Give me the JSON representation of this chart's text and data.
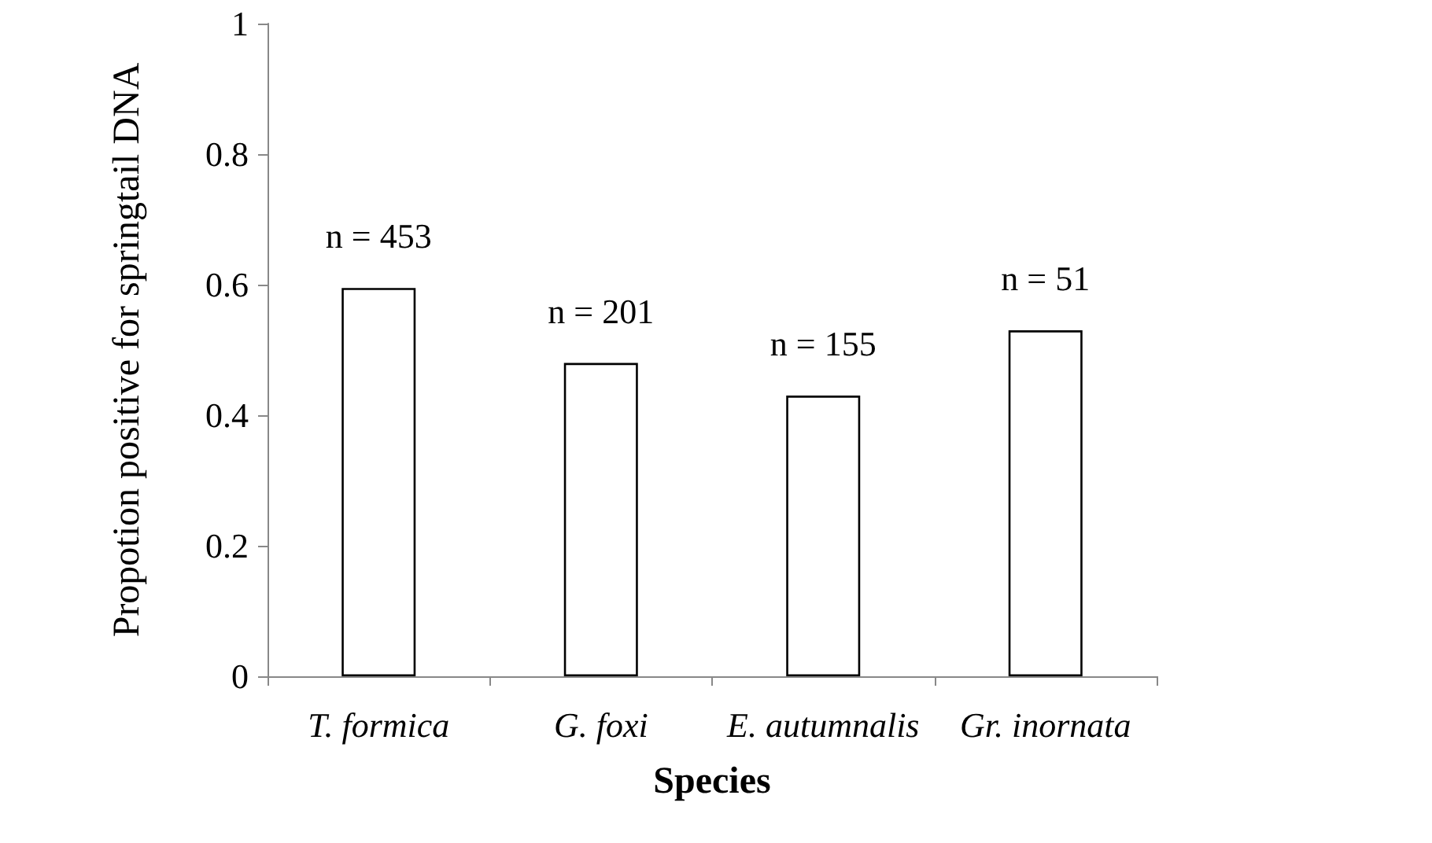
{
  "chart_data": {
    "type": "bar",
    "xlabel": "Species",
    "ylabel": "Propotion positive for springtail DNA",
    "categories": [
      "T. formica",
      "G. foxi",
      "E. autumnalis",
      "Gr. inornata"
    ],
    "values": [
      0.595,
      0.48,
      0.43,
      0.53
    ],
    "color": "#ffffff",
    "ylim": [
      0,
      1
    ],
    "yticks": [
      0,
      0.2,
      0.4,
      0.6,
      0.8,
      1
    ],
    "grid": false,
    "annotations": [
      {
        "text": "n = 453",
        "x": "T. formica",
        "y": 0.595
      },
      {
        "text": "n = 201",
        "x": "G. foxi",
        "y": 0.48
      },
      {
        "text": "n = 155",
        "x": "E. autumnalis",
        "y": 0.43
      },
      {
        "text": "n = 51",
        "x": "Gr. inornata",
        "y": 0.53
      }
    ]
  }
}
